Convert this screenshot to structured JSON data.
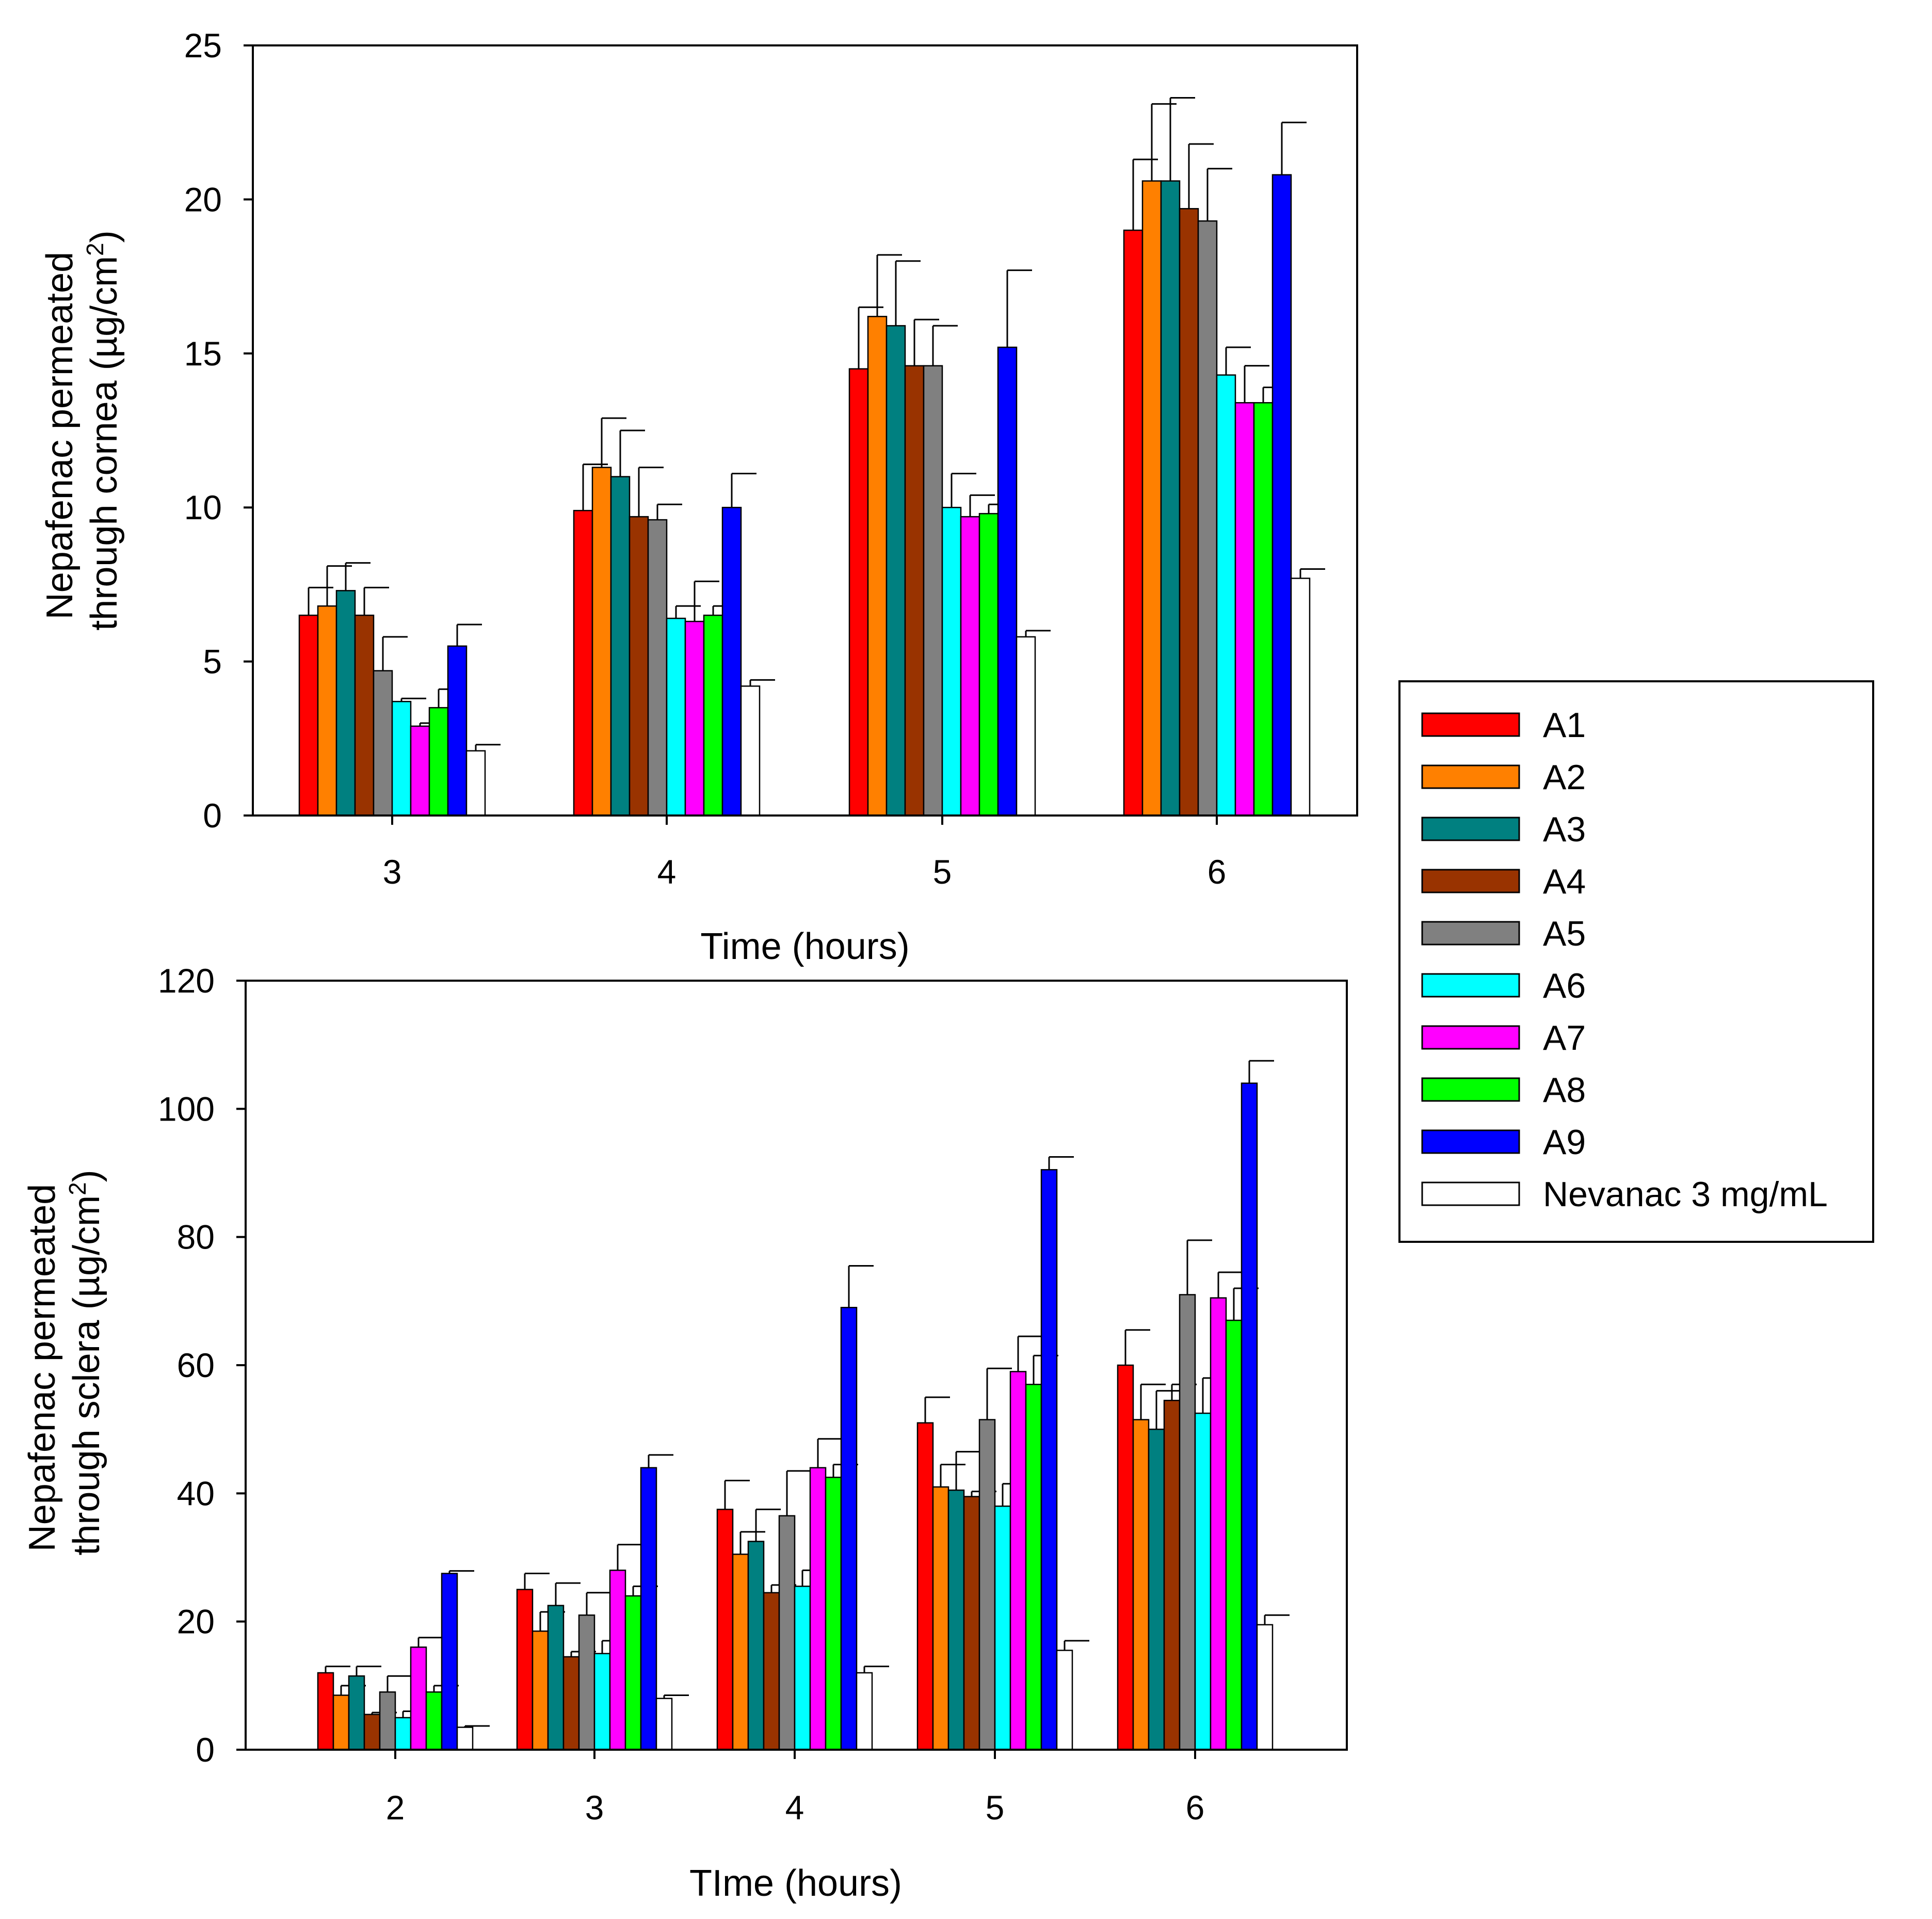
{
  "chart_data": [
    {
      "type": "bar",
      "title": "",
      "xlabel": "Time (hours)",
      "ylabel_line1": "Nepafenac permeated",
      "ylabel_line2": "through cornea (µg/cm",
      "ylabel_sup": "2",
      "ylabel_end": ")",
      "ylim": [
        0,
        25
      ],
      "yticks": [
        0,
        5,
        10,
        15,
        20,
        25
      ],
      "grid": false,
      "categories": [
        "3",
        "4",
        "5",
        "6"
      ],
      "series": [
        {
          "name": "A1",
          "values": [
            6.5,
            9.9,
            14.5,
            19.0
          ],
          "errors": [
            0.9,
            1.5,
            2.0,
            2.3
          ]
        },
        {
          "name": "A2",
          "values": [
            6.8,
            11.3,
            16.2,
            20.6
          ],
          "errors": [
            1.3,
            1.6,
            2.0,
            2.5
          ]
        },
        {
          "name": "A3",
          "values": [
            7.3,
            11.0,
            15.9,
            20.6
          ],
          "errors": [
            0.9,
            1.5,
            2.1,
            2.7
          ]
        },
        {
          "name": "A4",
          "values": [
            6.5,
            9.7,
            14.6,
            19.7
          ],
          "errors": [
            0.9,
            1.6,
            1.5,
            2.1
          ]
        },
        {
          "name": "A5",
          "values": [
            4.7,
            9.6,
            14.6,
            19.3
          ],
          "errors": [
            1.1,
            0.5,
            1.3,
            1.7
          ]
        },
        {
          "name": "A6",
          "values": [
            3.7,
            6.4,
            10.0,
            14.3
          ],
          "errors": [
            0.1,
            0.4,
            1.1,
            0.9
          ]
        },
        {
          "name": "A7",
          "values": [
            2.9,
            6.3,
            9.7,
            13.4
          ],
          "errors": [
            0.1,
            1.3,
            0.7,
            1.2
          ]
        },
        {
          "name": "A8",
          "values": [
            3.5,
            6.5,
            9.8,
            13.4
          ],
          "errors": [
            0.6,
            0.3,
            0.3,
            0.5
          ]
        },
        {
          "name": "A9",
          "values": [
            5.5,
            10.0,
            15.2,
            20.8
          ],
          "errors": [
            0.7,
            1.1,
            2.5,
            1.7
          ]
        },
        {
          "name": "Nevanac 3 mg/mL",
          "values": [
            2.1,
            4.2,
            5.8,
            7.7
          ],
          "errors": [
            0.2,
            0.2,
            0.2,
            0.3
          ]
        }
      ]
    },
    {
      "type": "bar",
      "title": "",
      "xlabel": "TIme (hours)",
      "ylabel_line1": "Nepafenac permeated",
      "ylabel_line2": "through sclera (µg/cm",
      "ylabel_sup": "2",
      "ylabel_end": ")",
      "ylim": [
        0,
        120
      ],
      "yticks": [
        0,
        20,
        40,
        60,
        80,
        100,
        120
      ],
      "grid": false,
      "categories": [
        "2",
        "3",
        "4",
        "5",
        "6"
      ],
      "series": [
        {
          "name": "A1",
          "values": [
            12,
            25,
            37.5,
            51,
            60
          ],
          "errors": [
            1,
            2.5,
            4.5,
            4,
            5.5
          ]
        },
        {
          "name": "A2",
          "values": [
            8.5,
            18.5,
            30.5,
            41,
            51.5
          ],
          "errors": [
            1.5,
            3,
            3.5,
            3.5,
            5.5
          ]
        },
        {
          "name": "A3",
          "values": [
            11.5,
            22.5,
            32.5,
            40.5,
            50
          ],
          "errors": [
            1.5,
            3.5,
            5,
            6,
            6
          ]
        },
        {
          "name": "A4",
          "values": [
            5.5,
            14.5,
            24.5,
            39.5,
            54.5
          ],
          "errors": [
            0.3,
            0.8,
            1.2,
            0.8,
            2.5
          ]
        },
        {
          "name": "A5",
          "values": [
            9,
            21,
            36.5,
            51.5,
            71
          ],
          "errors": [
            2.5,
            3.5,
            7,
            8,
            8.5
          ]
        },
        {
          "name": "A6",
          "values": [
            5,
            15,
            25.5,
            38,
            52.5
          ],
          "errors": [
            1,
            2,
            2.5,
            3.5,
            5.5
          ]
        },
        {
          "name": "A7",
          "values": [
            16,
            28,
            44,
            59,
            70.5
          ],
          "errors": [
            1.5,
            4,
            4.5,
            5.5,
            4
          ]
        },
        {
          "name": "A8",
          "values": [
            9,
            24,
            42.5,
            57,
            67
          ],
          "errors": [
            1,
            1.5,
            2,
            4.5,
            5
          ]
        },
        {
          "name": "A9",
          "values": [
            27.5,
            44,
            69,
            90.5,
            104
          ],
          "errors": [
            0.4,
            2,
            6.5,
            2,
            3.5
          ]
        },
        {
          "name": "Nevanac 3 mg/mL",
          "values": [
            3.5,
            8,
            12,
            15.5,
            19.5
          ],
          "errors": [
            0.2,
            0.5,
            1,
            1.5,
            1.5
          ]
        }
      ]
    }
  ],
  "legend": {
    "position": "right",
    "items": [
      {
        "name": "A1",
        "color": "#ff0000"
      },
      {
        "name": "A2",
        "color": "#ff8000"
      },
      {
        "name": "A3",
        "color": "#008080"
      },
      {
        "name": "A4",
        "color": "#993300"
      },
      {
        "name": "A5",
        "color": "#808080"
      },
      {
        "name": "A6",
        "color": "#00ffff"
      },
      {
        "name": "A7",
        "color": "#ff00ff"
      },
      {
        "name": "A8",
        "color": "#00ff00"
      },
      {
        "name": "A9",
        "color": "#0000ff"
      },
      {
        "name": "Nevanac 3 mg/mL",
        "color": "#ffffff"
      }
    ]
  }
}
